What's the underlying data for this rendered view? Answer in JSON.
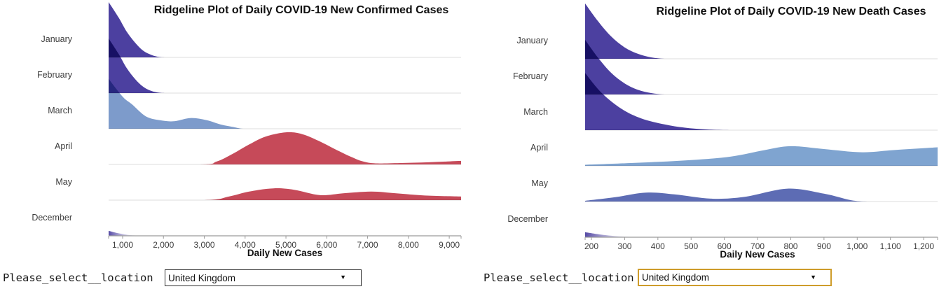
{
  "charts": [
    {
      "title": "Ridgeline Plot of Daily COVID-19 New Confirmed Cases",
      "xlabel": "Daily New Cases",
      "select": {
        "label": "Please_select__location",
        "value": "United Kingdom",
        "options": [
          "United Kingdom"
        ],
        "border_color": "#2e2e2e",
        "highlighted": false
      },
      "chart_data": {
        "type": "area",
        "subtype": "ridgeline",
        "months": [
          "January",
          "February",
          "March",
          "April",
          "May",
          "December"
        ],
        "domain": [
          657,
          9290
        ],
        "grid": true,
        "ticks": [
          {
            "v": 1000,
            "label": "1,000"
          },
          {
            "v": 2000,
            "label": "2,000"
          },
          {
            "v": 3000,
            "label": "3,000"
          },
          {
            "v": 4000,
            "label": "4,000"
          },
          {
            "v": 5000,
            "label": "5,000"
          },
          {
            "v": 6000,
            "label": "6,000"
          },
          {
            "v": 7000,
            "label": "7,000"
          },
          {
            "v": 8000,
            "label": "8,000"
          },
          {
            "v": 9000,
            "label": "9,000"
          }
        ],
        "series": [
          {
            "name": "January",
            "color": "#4C40A0",
            "fade": false,
            "points": [
              [
                657,
                1.55
              ],
              [
                900,
                1.12
              ],
              [
                1100,
                0.72
              ],
              [
                1300,
                0.42
              ],
              [
                1500,
                0.19
              ],
              [
                1700,
                0.07
              ],
              [
                1900,
                0.01
              ],
              [
                2100,
                0
              ],
              [
                2600,
                0
              ],
              [
                9290,
                0
              ]
            ]
          },
          {
            "name": "February",
            "color": "#4C40A0",
            "fade": false,
            "points": [
              [
                657,
                1.53
              ],
              [
                900,
                1.1
              ],
              [
                1100,
                0.7
              ],
              [
                1300,
                0.4
              ],
              [
                1500,
                0.18
              ],
              [
                1700,
                0.06
              ],
              [
                1900,
                0.01
              ],
              [
                2100,
                0
              ],
              [
                2600,
                0
              ],
              [
                9290,
                0
              ]
            ]
          },
          {
            "name": "March",
            "color": "#7D9BCB",
            "fade": false,
            "points": [
              [
                657,
                1.4
              ],
              [
                1000,
                0.9
              ],
              [
                1223,
                0.69
              ],
              [
                1567,
                0.35
              ],
              [
                1910,
                0.24
              ],
              [
                2253,
                0.21
              ],
              [
                2660,
                0.3
              ],
              [
                3060,
                0.24
              ],
              [
                3400,
                0.12
              ],
              [
                3750,
                0.04
              ],
              [
                3950,
                0
              ],
              [
                4300,
                0
              ],
              [
                9290,
                0
              ]
            ]
          },
          {
            "name": "April",
            "color": "#C64A59",
            "fade": false,
            "points": [
              [
                657,
                0
              ],
              [
                2900,
                0
              ],
              [
                3300,
                0.08
              ],
              [
                3700,
                0.3
              ],
              [
                4100,
                0.56
              ],
              [
                4500,
                0.78
              ],
              [
                5000,
                0.9
              ],
              [
                5400,
                0.85
              ],
              [
                5800,
                0.66
              ],
              [
                6200,
                0.43
              ],
              [
                6600,
                0.21
              ],
              [
                6900,
                0.08
              ],
              [
                7200,
                0.03
              ],
              [
                7800,
                0.04
              ],
              [
                8500,
                0.06
              ],
              [
                9290,
                0.1
              ]
            ]
          },
          {
            "name": "May",
            "color": "#C64A59",
            "fade": false,
            "points": [
              [
                657,
                0
              ],
              [
                3000,
                0
              ],
              [
                3600,
                0.1
              ],
              [
                4100,
                0.24
              ],
              [
                4690,
                0.33
              ],
              [
                5200,
                0.29
              ],
              [
                5840,
                0.14
              ],
              [
                6400,
                0.19
              ],
              [
                7090,
                0.24
              ],
              [
                7700,
                0.19
              ],
              [
                8400,
                0.13
              ],
              [
                9290,
                0.1
              ]
            ]
          },
          {
            "name": "December",
            "color": "#4C40A0",
            "fade": true,
            "points": [
              [
                657,
                0.14
              ],
              [
                900,
                0.07
              ],
              [
                1200,
                0.02
              ],
              [
                1600,
                0
              ]
            ]
          }
        ]
      }
    },
    {
      "title": "Ridgeline Plot of Daily COVID-19 New Death Cases",
      "xlabel": "Daily New Cases",
      "select": {
        "label": "Please_select__location",
        "value": "United Kingdom",
        "options": [
          "United Kingdom"
        ],
        "border_color": "#CE9C2B",
        "highlighted": true
      },
      "chart_data": {
        "type": "area",
        "subtype": "ridgeline",
        "months": [
          "January",
          "February",
          "March",
          "April",
          "May",
          "December"
        ],
        "domain": [
          181,
          1242
        ],
        "grid": true,
        "ticks": [
          {
            "v": 200,
            "label": "200"
          },
          {
            "v": 300,
            "label": "300"
          },
          {
            "v": 400,
            "label": "400"
          },
          {
            "v": 500,
            "label": "500"
          },
          {
            "v": 600,
            "label": "600"
          },
          {
            "v": 700,
            "label": "700"
          },
          {
            "v": 800,
            "label": "800"
          },
          {
            "v": 900,
            "label": "900"
          },
          {
            "v": 1000,
            "label": "1,000"
          },
          {
            "v": 1100,
            "label": "1,100"
          },
          {
            "v": 1200,
            "label": "1,200"
          }
        ],
        "series": [
          {
            "name": "January",
            "color": "#4C40A0",
            "fade": false,
            "points": [
              [
                181,
                1.55
              ],
              [
                220,
                1.05
              ],
              [
                260,
                0.62
              ],
              [
                300,
                0.32
              ],
              [
                340,
                0.14
              ],
              [
                380,
                0.04
              ],
              [
                420,
                0
              ],
              [
                470,
                0
              ],
              [
                1242,
                0
              ]
            ]
          },
          {
            "name": "February",
            "color": "#4C40A0",
            "fade": false,
            "points": [
              [
                181,
                1.53
              ],
              [
                220,
                1.03
              ],
              [
                260,
                0.6
              ],
              [
                300,
                0.31
              ],
              [
                340,
                0.13
              ],
              [
                380,
                0.04
              ],
              [
                420,
                0
              ],
              [
                470,
                0
              ],
              [
                1242,
                0
              ]
            ]
          },
          {
            "name": "March",
            "color": "#4C40A0",
            "fade": false,
            "points": [
              [
                181,
                1.6
              ],
              [
                230,
                1.05
              ],
              [
                290,
                0.6
              ],
              [
                350,
                0.33
              ],
              [
                420,
                0.16
              ],
              [
                480,
                0.07
              ],
              [
                545,
                0.02
              ],
              [
                615,
                0
              ],
              [
                670,
                0
              ],
              [
                1242,
                0
              ]
            ]
          },
          {
            "name": "April",
            "color": "#7FA4D0",
            "fade": false,
            "points": [
              [
                181,
                0.03
              ],
              [
                350,
                0.09
              ],
              [
                500,
                0.16
              ],
              [
                620,
                0.26
              ],
              [
                720,
                0.44
              ],
              [
                800,
                0.55
              ],
              [
                900,
                0.47
              ],
              [
                1015,
                0.38
              ],
              [
                1120,
                0.45
              ],
              [
                1242,
                0.52
              ]
            ]
          },
          {
            "name": "May",
            "color": "#5D6CB4",
            "fade": false,
            "points": [
              [
                181,
                0.02
              ],
              [
                270,
                0.12
              ],
              [
                365,
                0.25
              ],
              [
                450,
                0.2
              ],
              [
                560,
                0.08
              ],
              [
                660,
                0.13
              ],
              [
                790,
                0.36
              ],
              [
                900,
                0.22
              ],
              [
                980,
                0.04
              ],
              [
                1030,
                0
              ],
              [
                1090,
                0
              ],
              [
                1242,
                0
              ]
            ]
          },
          {
            "name": "December",
            "color": "#4C40A0",
            "fade": true,
            "points": [
              [
                181,
                0.14
              ],
              [
                240,
                0.06
              ],
              [
                300,
                0.015
              ],
              [
                380,
                0
              ]
            ]
          }
        ]
      }
    }
  ]
}
